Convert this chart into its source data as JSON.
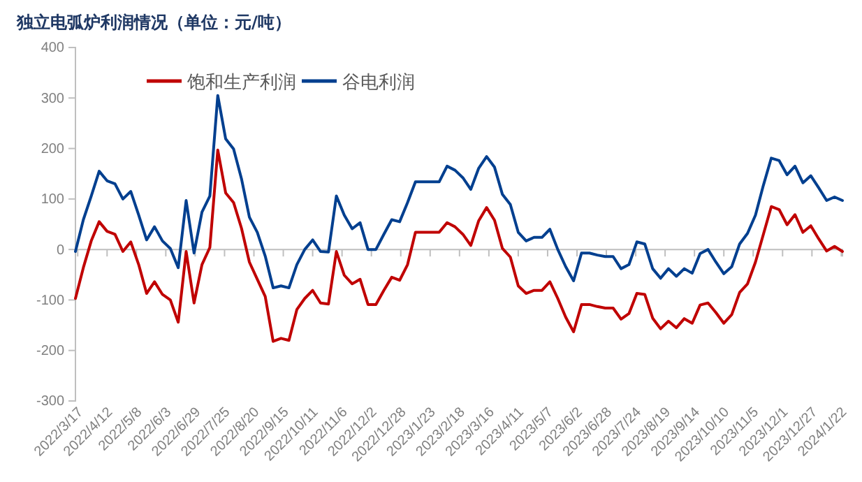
{
  "chart_data": {
    "type": "line",
    "title": "独立电弧炉利润情况（单位：元/吨）",
    "x": [
      "2022-03-15",
      "2022-03-22",
      "2022-03-29",
      "2022-04-05",
      "2022-04-12",
      "2022-04-19",
      "2022-04-26",
      "2022-05-03",
      "2022-05-10",
      "2022-05-17",
      "2022-05-24",
      "2022-05-31",
      "2022-06-07",
      "2022-06-14",
      "2022-06-21",
      "2022-06-28",
      "2022-07-05",
      "2022-07-12",
      "2022-07-19",
      "2022-07-26",
      "2022-08-02",
      "2022-08-09",
      "2022-08-16",
      "2022-08-23",
      "2022-08-30",
      "2022-09-06",
      "2022-09-13",
      "2022-09-20",
      "2022-09-27",
      "2022-10-04",
      "2022-10-11",
      "2022-10-18",
      "2022-10-25",
      "2022-11-01",
      "2022-11-08",
      "2022-11-15",
      "2022-11-22",
      "2022-11-29",
      "2022-12-06",
      "2022-12-13",
      "2022-12-20",
      "2022-12-27",
      "2023-01-03",
      "2023-01-10",
      "2023-01-17",
      "2023-01-24",
      "2023-01-31",
      "2023-02-07",
      "2023-02-14",
      "2023-02-21",
      "2023-02-28",
      "2023-03-07",
      "2023-03-14",
      "2023-03-21",
      "2023-03-28",
      "2023-04-04",
      "2023-04-11",
      "2023-04-18",
      "2023-04-25",
      "2023-05-02",
      "2023-05-09",
      "2023-05-16",
      "2023-05-23",
      "2023-05-30",
      "2023-06-06",
      "2023-06-13",
      "2023-06-20",
      "2023-06-27",
      "2023-07-04",
      "2023-07-11",
      "2023-07-18",
      "2023-07-25",
      "2023-08-01",
      "2023-08-08",
      "2023-08-15",
      "2023-08-22",
      "2023-08-29",
      "2023-09-05",
      "2023-09-12",
      "2023-09-19",
      "2023-09-26",
      "2023-10-03",
      "2023-10-10",
      "2023-10-17",
      "2023-10-24",
      "2023-10-31",
      "2023-11-07",
      "2023-11-14",
      "2023-11-21",
      "2023-11-28",
      "2023-12-05",
      "2023-12-12",
      "2023-12-19",
      "2023-12-26",
      "2024-01-02",
      "2024-01-09",
      "2024-01-16",
      "2024-01-23"
    ],
    "series": [
      {
        "name": "饱和生产利润",
        "color": "#c00000",
        "values": [
          -97,
          -36,
          17,
          55,
          36,
          30,
          -4,
          15,
          -30,
          -87,
          -64,
          -89,
          -100,
          -144,
          -4,
          -106,
          -30,
          4,
          197,
          112,
          93,
          42,
          -25,
          -59,
          -93,
          -182,
          -176,
          -180,
          -119,
          -97,
          -81,
          -106,
          -108,
          -4,
          -51,
          -68,
          -59,
          -109,
          -109,
          -81,
          -55,
          -61,
          -30,
          34,
          34,
          34,
          34,
          53,
          45,
          30,
          8,
          57,
          83,
          58,
          2,
          -15,
          -72,
          -87,
          -81,
          -81,
          -64,
          -97,
          -134,
          -163,
          -109,
          -109,
          -113,
          -116,
          -116,
          -138,
          -127,
          -87,
          -89,
          -136,
          -157,
          -142,
          -155,
          -137,
          -146,
          -110,
          -106,
          -125,
          -146,
          -129,
          -85,
          -68,
          -25,
          30,
          85,
          79,
          49,
          69,
          34,
          47,
          21,
          -3,
          6,
          -4
        ]
      },
      {
        "name": "谷电利润",
        "color": "#003f8f",
        "values": [
          -4,
          59,
          106,
          155,
          136,
          130,
          100,
          115,
          68,
          19,
          45,
          17,
          2,
          -36,
          97,
          -7,
          74,
          106,
          305,
          219,
          199,
          140,
          64,
          34,
          -13,
          -76,
          -72,
          -76,
          -30,
          0,
          19,
          -4,
          -5,
          106,
          68,
          41,
          53,
          0,
          0,
          30,
          59,
          55,
          93,
          134,
          134,
          134,
          134,
          165,
          157,
          142,
          119,
          161,
          184,
          163,
          109,
          89,
          34,
          17,
          24,
          24,
          40,
          0,
          -34,
          -62,
          -7,
          -7,
          -11,
          -14,
          -14,
          -38,
          -30,
          15,
          11,
          -38,
          -57,
          -38,
          -53,
          -38,
          -47,
          -8,
          0,
          -25,
          -48,
          -34,
          11,
          32,
          68,
          127,
          181,
          176,
          148,
          165,
          132,
          146,
          122,
          97,
          104,
          97
        ]
      }
    ],
    "xlim": [
      "2022-03-15",
      "2024-01-23"
    ],
    "xticks": [
      {
        "value": "2022-03-17",
        "label": "2022/3/17"
      },
      {
        "value": "2022-04-12",
        "label": "2022/4/12"
      },
      {
        "value": "2022-05-08",
        "label": "2022/5/8"
      },
      {
        "value": "2022-06-03",
        "label": "2022/6/3"
      },
      {
        "value": "2022-06-29",
        "label": "2022/6/29"
      },
      {
        "value": "2022-07-25",
        "label": "2022/7/25"
      },
      {
        "value": "2022-08-20",
        "label": "2022/8/20"
      },
      {
        "value": "2022-09-15",
        "label": "2022/9/15"
      },
      {
        "value": "2022-10-11",
        "label": "2022/10/11"
      },
      {
        "value": "2022-11-06",
        "label": "2022/11/6"
      },
      {
        "value": "2022-12-02",
        "label": "2022/12/2"
      },
      {
        "value": "2022-12-28",
        "label": "2022/12/28"
      },
      {
        "value": "2023-01-23",
        "label": "2023/1/23"
      },
      {
        "value": "2023-02-18",
        "label": "2023/2/18"
      },
      {
        "value": "2023-03-16",
        "label": "2023/3/16"
      },
      {
        "value": "2023-04-11",
        "label": "2023/4/11"
      },
      {
        "value": "2023-05-07",
        "label": "2023/5/7"
      },
      {
        "value": "2023-06-02",
        "label": "2023/6/2"
      },
      {
        "value": "2023-06-28",
        "label": "2023/6/28"
      },
      {
        "value": "2023-07-24",
        "label": "2023/7/24"
      },
      {
        "value": "2023-08-19",
        "label": "2023/8/19"
      },
      {
        "value": "2023-09-14",
        "label": "2023/9/14"
      },
      {
        "value": "2023-10-10",
        "label": "2023/10/10"
      },
      {
        "value": "2023-11-05",
        "label": "2023/11/5"
      },
      {
        "value": "2023-12-01",
        "label": "2023/12/1"
      },
      {
        "value": "2023-12-27",
        "label": "2023/12/27"
      },
      {
        "value": "2024-01-22",
        "label": "2024/1/22"
      }
    ],
    "ylim": [
      -300,
      400
    ],
    "yticks": [
      -300,
      -200,
      -100,
      0,
      100,
      200,
      300,
      400
    ],
    "legend": "top",
    "grid": false
  }
}
